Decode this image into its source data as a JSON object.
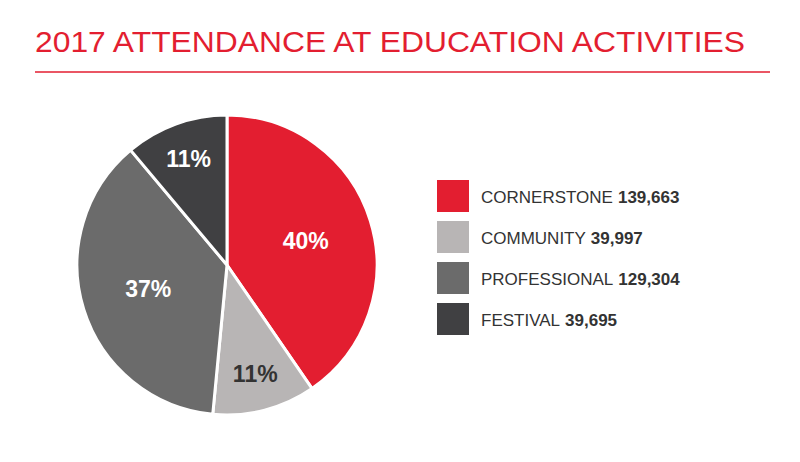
{
  "chart_data": {
    "type": "pie",
    "title": "2017 ATTENDANCE AT EDUCATION ACTIVITIES",
    "categories": [
      "CORNERSTONE",
      "COMMUNITY",
      "PROFESSIONAL",
      "FESTIVAL"
    ],
    "values": [
      40,
      11,
      37,
      11
    ],
    "value_labels": [
      "40%",
      "11%",
      "37%",
      "11%"
    ],
    "counts": [
      {
        "value": 139663,
        "label": "139,663"
      },
      {
        "value": 39997,
        "label": "39,997"
      },
      {
        "value": 129304,
        "label": "129,304"
      },
      {
        "value": 39695,
        "label": "39,695"
      }
    ],
    "colors": [
      "#e31e30",
      "#b8b5b5",
      "#6b6b6b",
      "#404042"
    ],
    "data_labels": true,
    "legend": "right"
  }
}
